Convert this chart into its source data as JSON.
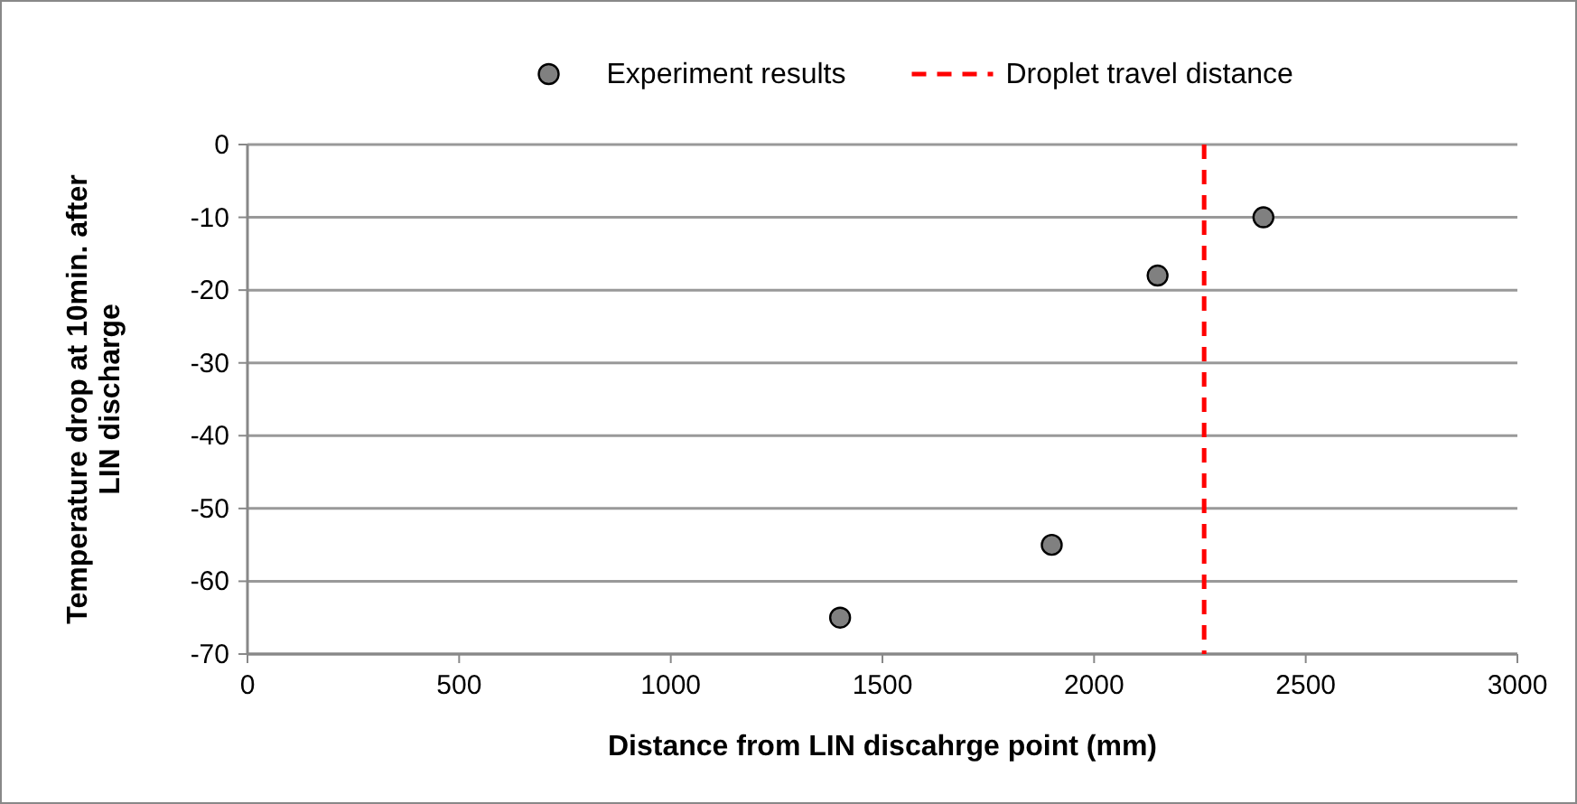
{
  "chart_data": {
    "type": "scatter",
    "xlabel": "Distance from LIN discahrge point (mm)",
    "ylabel": "Temperature drop at 10min. after LIN discharge",
    "x": [
      1400,
      1900,
      2150,
      2400
    ],
    "series": [
      {
        "name": "Experiment results",
        "color": "#808080",
        "values": [
          -65,
          -55,
          -18,
          -10
        ]
      }
    ],
    "xlim": [
      0,
      3000
    ],
    "xticks": [
      0,
      500,
      1000,
      1500,
      2000,
      2500,
      3000
    ],
    "ylim": [
      -70,
      0
    ],
    "yticks": [
      -70,
      -60,
      -50,
      -40,
      -30,
      -20,
      -10,
      0
    ],
    "grid": "y",
    "marker": "circle",
    "legend": "top",
    "ref_lines": [
      {
        "axis": "x",
        "value": 2260,
        "label": "Droplet travel distance",
        "color": "#ff0000",
        "line_style": "dashed"
      }
    ]
  }
}
